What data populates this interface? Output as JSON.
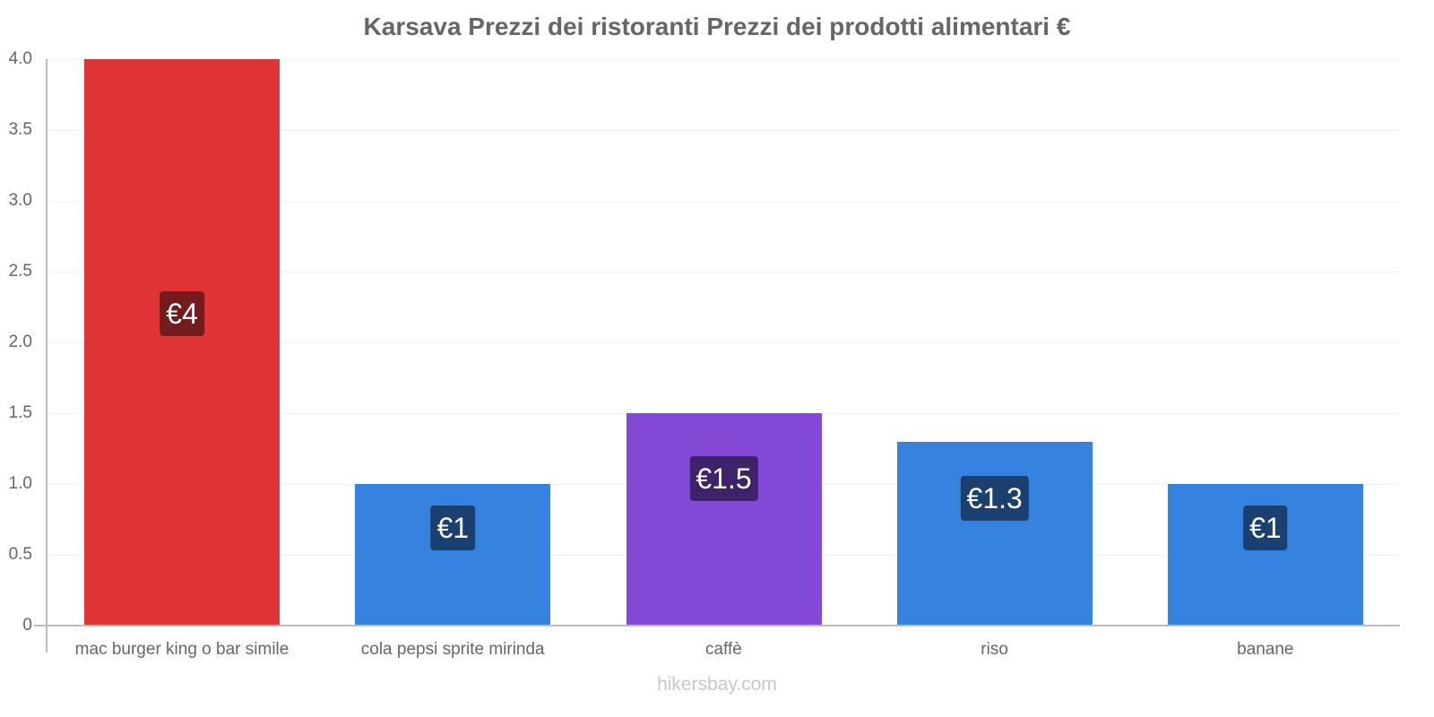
{
  "chart_data": {
    "type": "bar",
    "title": "Karsava Prezzi dei ristoranti Prezzi dei prodotti alimentari €",
    "xlabel": "",
    "ylabel": "",
    "ylim": [
      0,
      4.0
    ],
    "yticks": [
      "0",
      "0.5",
      "1.0",
      "1.5",
      "2.0",
      "2.5",
      "3.0",
      "3.5",
      "4.0"
    ],
    "grid": true,
    "legend": "none",
    "categories": [
      "mac burger king o bar simile",
      "cola pepsi sprite mirinda",
      "caffè",
      "riso",
      "banane"
    ],
    "values": [
      4,
      1,
      1.5,
      1.3,
      1
    ],
    "value_labels": [
      "€4",
      "€1",
      "€1.5",
      "€1.3",
      "€1"
    ],
    "bar_colors": [
      "#e03537",
      "#3583de",
      "#8249d6",
      "#3583de",
      "#3583de"
    ],
    "label_bg_colors": [
      "#731c1d",
      "#1b3f6e",
      "#3e236a",
      "#1b3f6e",
      "#1b3f6e"
    ]
  },
  "footer": {
    "watermark": "hikersbay.com"
  }
}
